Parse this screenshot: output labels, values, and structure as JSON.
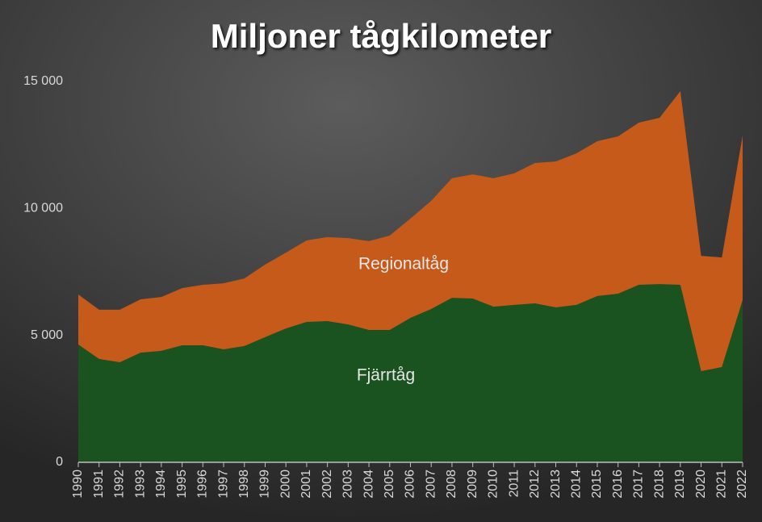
{
  "chart_data": {
    "type": "stacked-area",
    "title": "Miljoner tågkilometer",
    "categories": [
      "1990",
      "1991",
      "1992",
      "1993",
      "1994",
      "1995",
      "1996",
      "1997",
      "1998",
      "1999",
      "2000",
      "2001",
      "2002",
      "2003",
      "2004",
      "2005",
      "2006",
      "2007",
      "2008",
      "2009",
      "2010",
      "2011",
      "2012",
      "2013",
      "2014",
      "2015",
      "2016",
      "2017",
      "2018",
      "2019",
      "2020",
      "2021",
      "2022"
    ],
    "series": [
      {
        "name": "Fjärrtåg",
        "color": "#1a5220",
        "values": [
          4640,
          4070,
          3940,
          4320,
          4390,
          4610,
          4610,
          4450,
          4580,
          4930,
          5270,
          5530,
          5560,
          5430,
          5210,
          5210,
          5690,
          6040,
          6480,
          6450,
          6130,
          6200,
          6260,
          6100,
          6200,
          6550,
          6640,
          6990,
          7020,
          6990,
          3590,
          3750,
          6390
        ]
      },
      {
        "name": "Regionaltåg",
        "color": "#c55a1a",
        "values": [
          1970,
          1940,
          2070,
          2100,
          2120,
          2250,
          2380,
          2600,
          2660,
          2860,
          2990,
          3210,
          3310,
          3400,
          3500,
          3720,
          3910,
          4260,
          4710,
          4890,
          5060,
          5180,
          5530,
          5750,
          5970,
          6100,
          6200,
          6390,
          6550,
          7630,
          4540,
          4320,
          6480
        ]
      }
    ],
    "ylim": [
      0,
      15000
    ],
    "yticks": [
      0,
      {
        "value": 5000,
        "label": "5 000"
      },
      {
        "value": 10000,
        "label": "10 000"
      },
      {
        "value": 15000,
        "label": "15 000"
      }
    ],
    "grid": false
  }
}
